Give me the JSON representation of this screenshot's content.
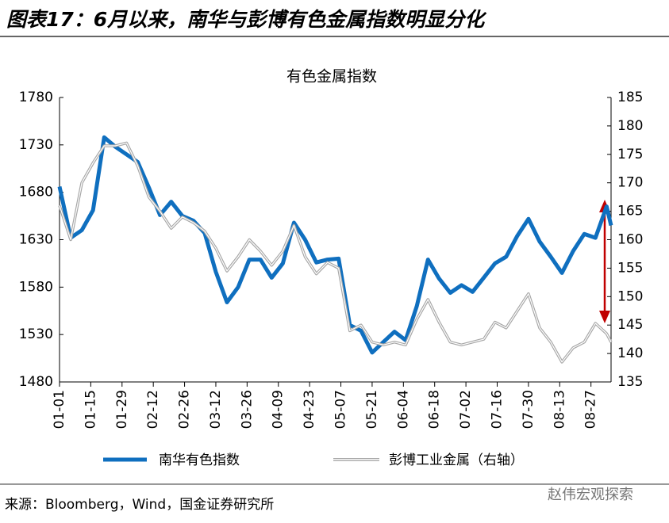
{
  "header": {
    "title": "图表17：6月以来，南华与彭博有色金属指数明显分化"
  },
  "chart_data": {
    "type": "line",
    "title": "有色金属指数",
    "x": [
      "01-01",
      "01-06",
      "01-11",
      "01-16",
      "01-21",
      "01-26",
      "01-31",
      "02-05",
      "02-10",
      "02-15",
      "02-20",
      "02-25",
      "03-02",
      "03-07",
      "03-12",
      "03-17",
      "03-22",
      "03-27",
      "04-01",
      "04-06",
      "04-11",
      "04-16",
      "04-21",
      "04-26",
      "05-01",
      "05-06",
      "05-11",
      "05-16",
      "05-21",
      "05-26",
      "05-31",
      "06-05",
      "06-10",
      "06-15",
      "06-20",
      "06-25",
      "06-30",
      "07-05",
      "07-10",
      "07-15",
      "07-20",
      "07-25",
      "07-30",
      "08-04",
      "08-09",
      "08-14",
      "08-19",
      "08-24",
      "08-29",
      "09-03",
      "09-05"
    ],
    "series": [
      {
        "name": "南华有色指数",
        "color": "#0f6fbf",
        "values": [
          1686,
          1632,
          1640,
          1661,
          1738,
          1728,
          1720,
          1712,
          1685,
          1656,
          1670,
          1655,
          1650,
          1637,
          1596,
          1564,
          1580,
          1609,
          1609,
          1590,
          1605,
          1648,
          1630,
          1606,
          1609,
          1610,
          1540,
          1534,
          1511,
          1522,
          1533,
          1524,
          1560,
          1609,
          1589,
          1574,
          1582,
          1575,
          1590,
          1605,
          1612,
          1634,
          1652,
          1628,
          1612,
          1595,
          1618,
          1636,
          1632,
          1665,
          1645
        ]
      },
      {
        "name": "彭博工业金属（右轴）",
        "color": "#a6a6a6",
        "axis": "y2",
        "values": [
          166,
          160,
          170,
          173.5,
          176.5,
          176.5,
          177,
          173,
          167.5,
          165,
          162,
          164,
          163,
          161.5,
          158.5,
          154.5,
          157,
          160,
          158,
          155.5,
          158,
          162.5,
          157,
          154,
          156,
          155,
          144,
          145,
          142,
          141.5,
          142,
          141.5,
          146,
          149.5,
          145.5,
          142,
          141.5,
          142,
          142.5,
          145.5,
          144.5,
          147.5,
          150.5,
          144.5,
          142,
          138.5,
          141,
          142,
          145.3,
          143.5,
          142
        ]
      }
    ],
    "xlim": [
      "01-01",
      "09-05"
    ],
    "xticks": [
      "01-01",
      "01-15",
      "01-29",
      "02-12",
      "02-26",
      "03-12",
      "03-26",
      "04-09",
      "04-23",
      "05-07",
      "05-21",
      "06-04",
      "06-18",
      "07-02",
      "07-16",
      "07-30",
      "08-13",
      "08-27"
    ],
    "ylim": [
      1480,
      1780
    ],
    "yticks": [
      1480,
      1530,
      1580,
      1630,
      1680,
      1730,
      1780
    ],
    "y2lim": [
      135,
      185
    ],
    "y2ticks": [
      135,
      140,
      145,
      150,
      155,
      160,
      165,
      170,
      175,
      180,
      185
    ],
    "grid": false
  },
  "source": "来源：Bloomberg，Wind，国金证券研究所",
  "watermark": "赵伟宏观探索"
}
